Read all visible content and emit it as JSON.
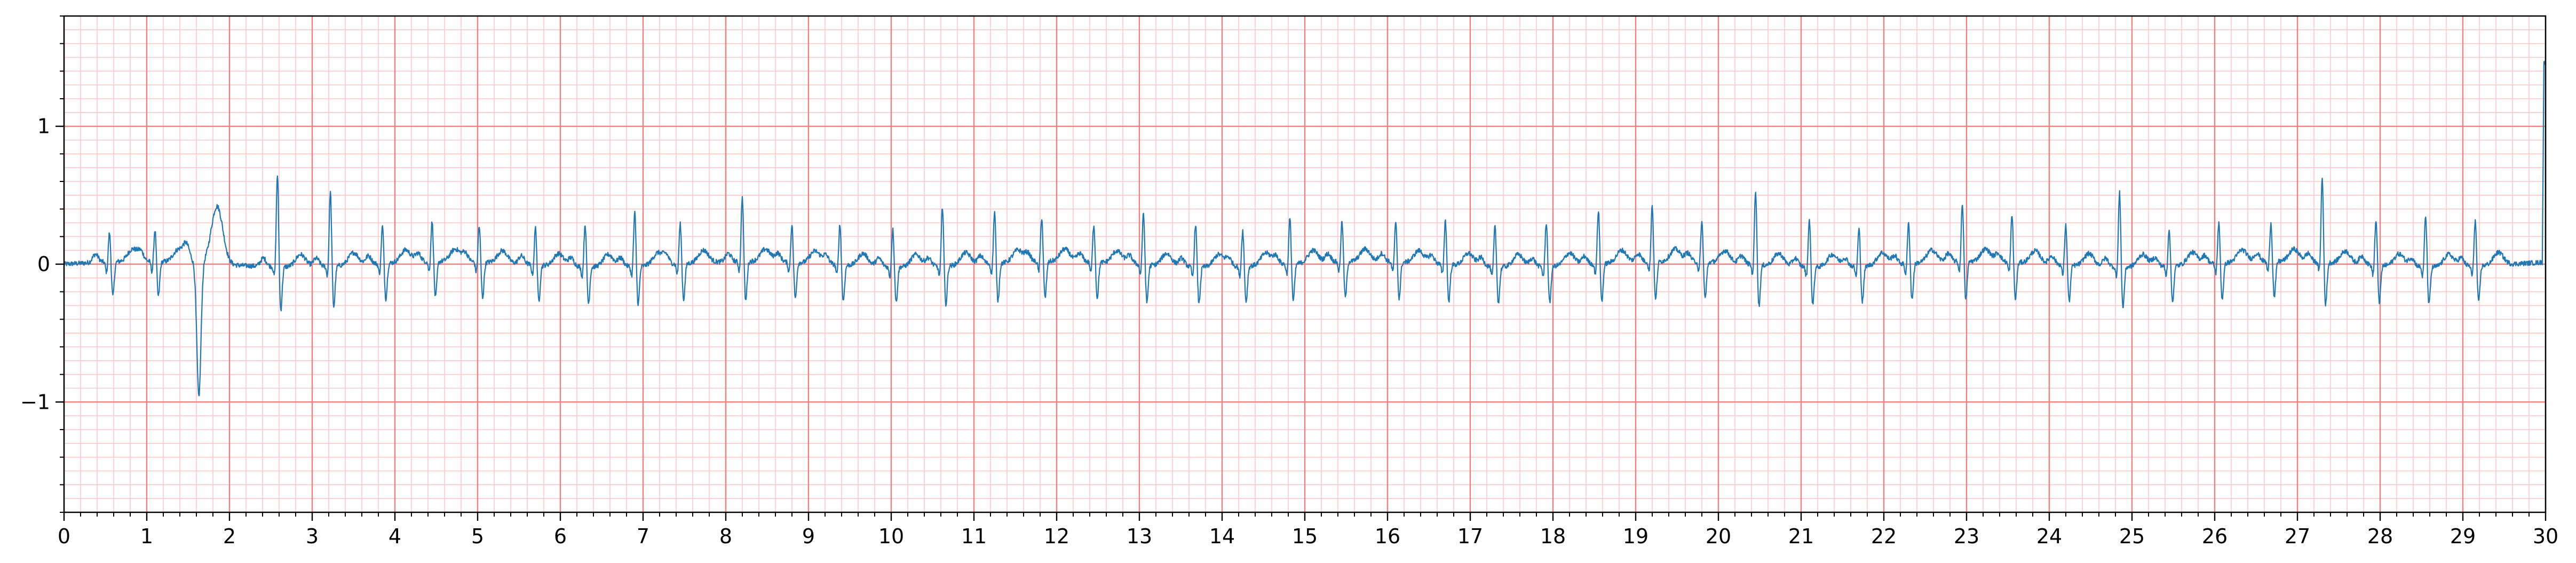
{
  "chart_data": {
    "type": "line",
    "title": "",
    "xlabel": "",
    "ylabel": "",
    "xlim": [
      0,
      30
    ],
    "ylim": [
      -1.8,
      1.8
    ],
    "x_ticks": [
      0,
      1,
      2,
      3,
      4,
      5,
      6,
      7,
      8,
      9,
      10,
      11,
      12,
      13,
      14,
      15,
      16,
      17,
      18,
      19,
      20,
      21,
      22,
      23,
      24,
      25,
      26,
      27,
      28,
      29,
      30
    ],
    "x_tick_labels": [
      "0",
      "1",
      "2",
      "3",
      "4",
      "5",
      "6",
      "7",
      "8",
      "9",
      "10",
      "11",
      "12",
      "13",
      "14",
      "15",
      "16",
      "17",
      "18",
      "19",
      "20",
      "21",
      "22",
      "23",
      "24",
      "25",
      "26",
      "27",
      "28",
      "29",
      "30"
    ],
    "y_ticks": [
      -1,
      0,
      1
    ],
    "y_tick_labels": [
      "−1",
      "0",
      "1"
    ],
    "grid": {
      "major_x_step": 1,
      "major_y_step": 1,
      "minor_x_step": 0.2,
      "minor_y_step": 0.1,
      "major_color": "#f08080",
      "minor_color": "#ffc8c8"
    },
    "line_color": "#1f77b4",
    "series": [
      {
        "beat_times": [
          0.55,
          1.1,
          1.63,
          2.58,
          3.22,
          3.85,
          4.45,
          5.02,
          5.7,
          6.3,
          6.9,
          7.45,
          8.2,
          8.8,
          9.38,
          10.02,
          10.62,
          11.25,
          11.82,
          12.45,
          13.05,
          13.68,
          14.25,
          14.82,
          15.45,
          16.1,
          16.7,
          17.3,
          17.92,
          18.55,
          19.2,
          19.8,
          20.45,
          21.1,
          21.7,
          22.3,
          22.95,
          23.55,
          24.2,
          24.85,
          25.45,
          26.05,
          26.68,
          27.3,
          27.95,
          28.55,
          29.15
        ],
        "beat_amplitudes": [
          0.22,
          0.24,
          -0.97,
          0.68,
          0.55,
          0.28,
          0.3,
          0.27,
          0.28,
          0.32,
          0.4,
          0.3,
          0.48,
          0.28,
          0.3,
          0.28,
          0.44,
          0.38,
          0.33,
          0.28,
          0.38,
          0.32,
          0.27,
          0.34,
          0.3,
          0.29,
          0.33,
          0.3,
          0.33,
          0.4,
          0.42,
          0.3,
          0.55,
          0.35,
          0.28,
          0.3,
          0.43,
          0.35,
          0.3,
          0.55,
          0.28,
          0.3,
          0.29,
          0.62,
          0.33,
          0.38,
          0.34
        ],
        "final_spike": {
          "x": 29.98,
          "y": 1.45
        }
      }
    ]
  }
}
